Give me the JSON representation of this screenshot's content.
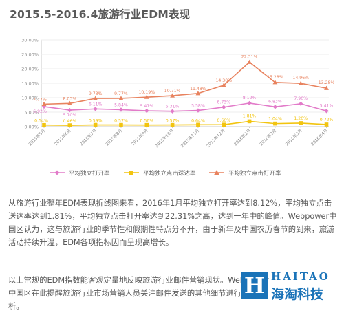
{
  "title": "2015.5-2016.4旅游行业EDM表现",
  "chart_data": {
    "type": "line",
    "title": "2015.5-2016.4旅游行业EDM表现",
    "categories": [
      "2015年5月",
      "2015年6月",
      "2015年7月",
      "2015年8月",
      "2015年9月",
      "2015年10月",
      "2015年11月",
      "2015年12月",
      "2016年1月",
      "2016年2月",
      "2016年3月",
      "2016年4月"
    ],
    "ylim": [
      0,
      25
    ],
    "y_ticks": [
      "0.00%",
      "5.00%",
      "10.00%",
      "15.00%",
      "20.00%",
      "25.00%",
      "30.00%"
    ],
    "grid": true,
    "legend_position": "bottom",
    "series": [
      {
        "name": "平均独立打开率",
        "color": "#e27bc9",
        "marker": "diamond",
        "values": [
          6.92,
          5.7,
          6.11,
          5.84,
          5.47,
          5.31,
          5.58,
          6.73,
          8.12,
          6.83,
          7.9,
          5.41
        ],
        "labels": [
          "6.92%",
          "5.70%",
          "6.11%",
          "5.84%",
          "5.47%",
          "5.31%",
          "5.58%",
          "6.73%",
          "8.12%",
          "6.83%",
          "7.90%",
          "5.41%"
        ]
      },
      {
        "name": "平均独立点击送达率",
        "color": "#f2c40f",
        "marker": "square",
        "values": [
          0.54,
          0.46,
          0.59,
          0.57,
          0.56,
          0.57,
          0.64,
          0.66,
          1.81,
          1.04,
          1.2,
          0.72
        ],
        "labels": [
          "0.54%",
          "0.46%",
          "0.59%",
          "0.57%",
          "0.56%",
          "0.57%",
          "0.64%",
          "0.66%",
          "1.81%",
          "1.04%",
          "1.20%",
          "0.72%"
        ]
      },
      {
        "name": "平均独立点击打开率",
        "color": "#e8825e",
        "marker": "triangle",
        "values": [
          7.77,
          8.03,
          9.73,
          9.77,
          10.19,
          10.71,
          11.48,
          14.3,
          22.31,
          15.28,
          14.96,
          13.28
        ],
        "labels": [
          "7.77%",
          "8.03%",
          "9.73%",
          "9.77%",
          "10.19%",
          "10.71%",
          "11.48%",
          "14.30%",
          "22.31%",
          "15.28%",
          "14.96%",
          "13.28%"
        ]
      }
    ]
  },
  "paragraphs": [
    "从旅游行业整年EDM表现折线图来看，2016年1月平均独立打开率达到8.12%，平均独立点击送达率达到1.81%，平均独立点击打开率达到22.31%之高，达到一年中的峰值。Webpower中国区认为，这与旅游行业的季节性和假期性特点分不开，由于新年及中国农历春节的到来，旅游活动持续升温，EDM各项指标因而呈现高增长。",
    "以上常规的EDM指数能客观定量地反映旅游行业邮件营销现状。Webpower中国区在此提醒旅游行业市场营销人员关注邮件发送的其他细节进行了分析。"
  ],
  "watermark": {
    "mark": "H",
    "en": "HAITAO",
    "cn": "海淘科技"
  }
}
